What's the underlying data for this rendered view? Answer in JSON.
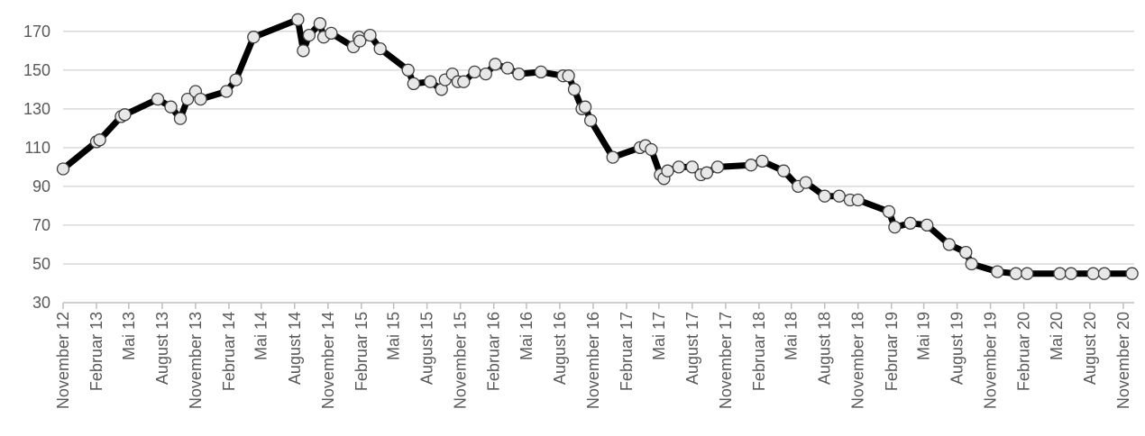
{
  "chart_data": {
    "type": "line",
    "title": "",
    "xlabel": "",
    "ylabel": "",
    "ylim": [
      30,
      175
    ],
    "yticks": [
      30,
      50,
      70,
      90,
      110,
      130,
      150,
      170
    ],
    "xlim": [
      "2012-11-01",
      "2020-12-01"
    ],
    "xtick_labels": [
      "November 12",
      "Februar 13",
      "Mai 13",
      "August 13",
      "November 13",
      "Februar 14",
      "Mai 14",
      "August 14",
      "November 14",
      "Februar 15",
      "Mai 15",
      "August 15",
      "November 15",
      "Februar 16",
      "Mai 16",
      "August 16",
      "November 16",
      "Februar 17",
      "Mai 17",
      "August 17",
      "November 17",
      "Februar 18",
      "Mai 18",
      "August 18",
      "November 18",
      "Februar 19",
      "Mai 19",
      "August 19",
      "November 19",
      "Februar 20",
      "Mai 20",
      "August 20",
      "November 20"
    ],
    "grid": true,
    "line_color": "#000000",
    "marker_fill": "#e8e8e8",
    "marker_stroke": "#404040",
    "series": [
      {
        "x": [
          "2012-11-01",
          "2013-02-01",
          "2013-02-10",
          "2013-04-10",
          "2013-04-20",
          "2013-07-20",
          "2013-08-25",
          "2013-09-20",
          "2013-10-10",
          "2013-11-01",
          "2013-11-15",
          "2014-01-25",
          "2014-02-20",
          "2014-04-10",
          "2014-08-10",
          "2014-08-25",
          "2014-09-10",
          "2014-10-10",
          "2014-10-20",
          "2014-11-10",
          "2015-01-10",
          "2015-01-25",
          "2015-01-28",
          "2015-02-25",
          "2015-03-25",
          "2015-06-10",
          "2015-06-25",
          "2015-08-10",
          "2015-09-10",
          "2015-09-20",
          "2015-10-10",
          "2015-10-25",
          "2015-11-10",
          "2015-12-10",
          "2016-01-10",
          "2016-02-05",
          "2016-03-10",
          "2016-04-10",
          "2016-06-10",
          "2016-08-10",
          "2016-08-25",
          "2016-09-10",
          "2016-10-01",
          "2016-10-10",
          "2016-10-25",
          "2016-12-25",
          "2017-03-10",
          "2017-03-25",
          "2017-04-10",
          "2017-05-05",
          "2017-05-15",
          "2017-05-25",
          "2017-06-25",
          "2017-08-01",
          "2017-08-25",
          "2017-09-10",
          "2017-10-10",
          "2018-01-10",
          "2018-02-10",
          "2018-04-10",
          "2018-05-20",
          "2018-06-10",
          "2018-08-01",
          "2018-09-10",
          "2018-10-10",
          "2018-11-01",
          "2019-01-25",
          "2019-02-10",
          "2019-03-25",
          "2019-05-10",
          "2019-07-10",
          "2019-08-25",
          "2019-09-10",
          "2019-11-20",
          "2020-01-10",
          "2020-02-10",
          "2020-05-10",
          "2020-06-10",
          "2020-08-10",
          "2020-09-10",
          "2020-11-25"
        ],
        "y": [
          99,
          113,
          114,
          126,
          127,
          135,
          131,
          125,
          135,
          139,
          135,
          139,
          145,
          167,
          176,
          160,
          168,
          174,
          167,
          169,
          162,
          167,
          165,
          168,
          161,
          150,
          143,
          144,
          140,
          145,
          148,
          144,
          144,
          149,
          148,
          153,
          151,
          148,
          149,
          147,
          147,
          140,
          130,
          131,
          124,
          105,
          110,
          111,
          109,
          96,
          94,
          98,
          100,
          100,
          96,
          97,
          100,
          101,
          103,
          98,
          90,
          92,
          85,
          85,
          83,
          83,
          77,
          69,
          71,
          70,
          60,
          56,
          50,
          46,
          45,
          45,
          45,
          45,
          45,
          45,
          45
        ]
      }
    ]
  }
}
